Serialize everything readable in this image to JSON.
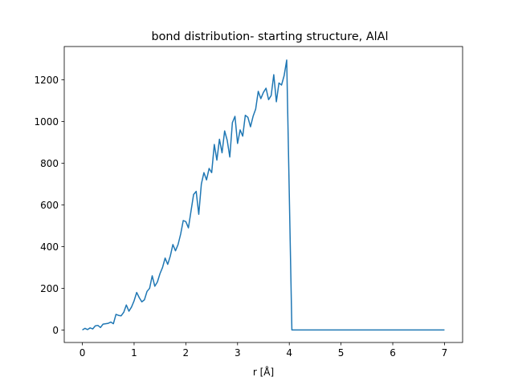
{
  "chart_data": {
    "type": "line",
    "title": "bond distribution- starting structure, AlAl",
    "xlabel": "r [Å]",
    "ylabel": "",
    "xlim": [
      -0.35,
      7.35
    ],
    "ylim": [
      -60,
      1360
    ],
    "xticks": [
      0,
      1,
      2,
      3,
      4,
      5,
      6,
      7
    ],
    "yticks": [
      0,
      200,
      400,
      600,
      800,
      1000,
      1200
    ],
    "grid": false,
    "color": "#1f77b4",
    "series": [
      {
        "x": [
          0.0,
          0.05,
          0.1,
          0.15,
          0.2,
          0.25,
          0.3,
          0.35,
          0.4,
          0.45,
          0.5,
          0.55,
          0.6,
          0.65,
          0.7,
          0.75,
          0.8,
          0.85,
          0.9,
          0.95,
          1.0,
          1.05,
          1.1,
          1.15,
          1.2,
          1.25,
          1.3,
          1.35,
          1.4,
          1.45,
          1.5,
          1.55,
          1.6,
          1.65,
          1.7,
          1.75,
          1.8,
          1.85,
          1.9,
          1.95,
          2.0,
          2.05,
          2.1,
          2.15,
          2.2,
          2.25,
          2.3,
          2.35,
          2.4,
          2.45,
          2.5,
          2.55,
          2.6,
          2.65,
          2.7,
          2.75,
          2.8,
          2.85,
          2.9,
          2.95,
          3.0,
          3.05,
          3.1,
          3.15,
          3.2,
          3.25,
          3.3,
          3.35,
          3.4,
          3.45,
          3.5,
          3.55,
          3.6,
          3.65,
          3.7,
          3.75,
          3.8,
          3.85,
          3.9,
          3.95,
          4.0,
          4.05,
          4.1,
          7.0
        ],
        "y": [
          0,
          8,
          2,
          10,
          5,
          20,
          22,
          12,
          28,
          30,
          32,
          38,
          30,
          75,
          70,
          68,
          85,
          120,
          90,
          110,
          140,
          180,
          155,
          135,
          145,
          185,
          200,
          260,
          210,
          230,
          270,
          300,
          345,
          315,
          355,
          410,
          380,
          410,
          460,
          525,
          520,
          490,
          570,
          650,
          665,
          555,
          700,
          755,
          720,
          775,
          755,
          890,
          815,
          915,
          850,
          955,
          910,
          830,
          995,
          1025,
          895,
          960,
          930,
          1030,
          1020,
          975,
          1025,
          1060,
          1145,
          1110,
          1140,
          1160,
          1105,
          1125,
          1225,
          1095,
          1185,
          1175,
          1220,
          1295,
          650,
          0,
          0,
          0
        ]
      }
    ]
  }
}
